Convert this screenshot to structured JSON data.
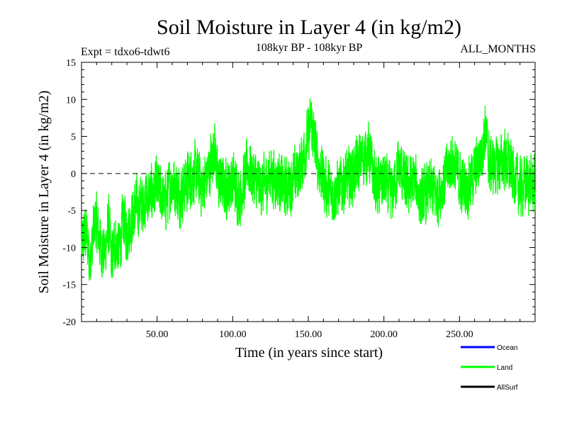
{
  "chart_data": {
    "type": "line",
    "title": "Soil Moisture in Layer 4 (in kg/m2)",
    "subtitle_left": "Expt = tdxo6-tdwt6",
    "subtitle_center": "108kyr BP - 108kyr BP",
    "subtitle_right": "ALL_MONTHS",
    "xlabel": "Time (in years since start)",
    "ylabel": "Soil Moisture in Layer 4 (in kg/m2)",
    "xlim": [
      0,
      300
    ],
    "ylim": [
      -20,
      15
    ],
    "xticks": [
      50,
      100,
      150,
      200,
      250
    ],
    "xtick_labels": [
      "50.00",
      "100.00",
      "150.00",
      "200.00",
      "250.00"
    ],
    "yticks": [
      -20,
      -15,
      -10,
      -5,
      0,
      5,
      10,
      15
    ],
    "ytick_labels": [
      "-20",
      "-15",
      "-10",
      "-5",
      "0",
      "5",
      "10",
      "15"
    ],
    "zero_line": "dashed",
    "grid": false,
    "legend_position": "bottom-right",
    "series": [
      {
        "name": "Ocean",
        "color": "#0000ff",
        "values": []
      },
      {
        "name": "Land",
        "color": "#00ff00",
        "x": [
          0,
          3,
          6,
          9,
          12,
          15,
          18,
          20,
          22,
          25,
          28,
          30,
          35,
          40,
          45,
          50,
          55,
          60,
          65,
          70,
          75,
          80,
          85,
          88,
          90,
          95,
          100,
          105,
          110,
          115,
          120,
          125,
          130,
          135,
          140,
          145,
          150,
          152,
          155,
          160,
          165,
          170,
          175,
          180,
          185,
          190,
          195,
          200,
          205,
          210,
          215,
          220,
          225,
          230,
          235,
          240,
          245,
          250,
          255,
          260,
          265,
          267,
          270,
          275,
          280,
          285,
          290,
          295,
          300
        ],
        "values": [
          -10,
          -8,
          -12,
          -6,
          -9,
          -11,
          -7,
          -12,
          -9,
          -10,
          -6,
          -8,
          -5,
          -4,
          -3,
          -2,
          -4,
          -1,
          -3,
          -1,
          0,
          -2,
          1,
          4,
          -1,
          -2,
          -1,
          -3,
          1,
          -1,
          -2,
          0,
          -1,
          -2,
          -1,
          1,
          5,
          7,
          3,
          -1,
          -3,
          -2,
          -1,
          0,
          2,
          3,
          -2,
          -1,
          -3,
          1,
          -2,
          -1,
          -4,
          -2,
          -3,
          -1,
          2,
          -1,
          -2,
          0,
          3,
          6,
          1,
          1,
          2,
          0,
          -2,
          -1,
          -2
        ]
      },
      {
        "name": "AllSurf",
        "color": "#000000",
        "values": []
      }
    ]
  }
}
